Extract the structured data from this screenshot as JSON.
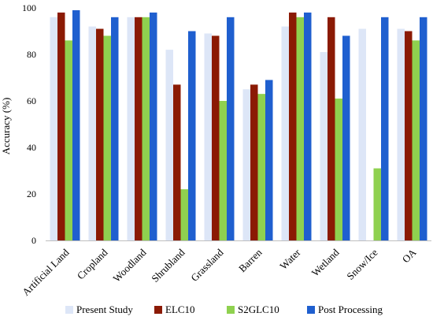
{
  "chart_data": {
    "type": "bar",
    "title": "",
    "xlabel": "",
    "ylabel": "Accuracy (%)",
    "ylim": [
      0,
      100
    ],
    "yticks": [
      0,
      20,
      40,
      60,
      80,
      100
    ],
    "grid": false,
    "legend_position": "bottom",
    "categories": [
      "Artificial Land",
      "Cropland",
      "Woodland",
      "Shrubland",
      "Grassland",
      "Barren",
      "Water",
      "Wetland",
      "Snow/Ice",
      "OA"
    ],
    "series": [
      {
        "name": "Present Study",
        "color": "#dde6f7",
        "values": [
          96,
          92,
          96,
          82,
          89,
          65,
          92,
          81,
          91,
          91
        ]
      },
      {
        "name": "ELC10",
        "color": "#8b1a04",
        "values": [
          98,
          91,
          96,
          67,
          88,
          67,
          98,
          96,
          null,
          90
        ]
      },
      {
        "name": "S2GLC10",
        "color": "#8fd14f",
        "values": [
          86,
          88,
          96,
          22,
          60,
          63,
          96,
          61,
          31,
          86
        ]
      },
      {
        "name": "Post Processing",
        "color": "#1f5fcf",
        "values": [
          99,
          96,
          98,
          90,
          96,
          69,
          98,
          88,
          96,
          96
        ]
      }
    ]
  }
}
